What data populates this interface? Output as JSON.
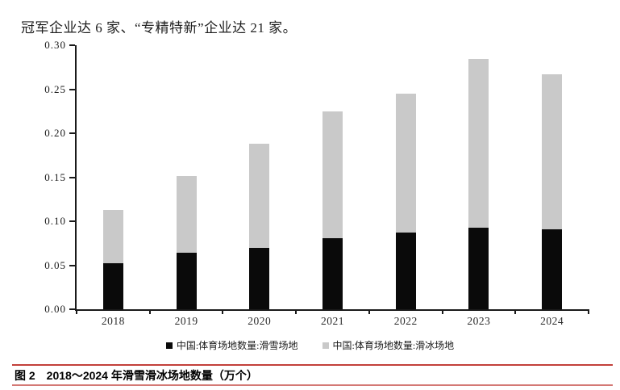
{
  "page": {
    "top_text": "冠军企业达 6 家、“专精特新”企业达 21 家。",
    "caption": "图 2　2018～2024 年滑雪滑冰场地数量（万个）"
  },
  "colors": {
    "ski_bar": "#0a0a0a",
    "skate_bar": "#c9c9c9",
    "axis": "#1a1a1a",
    "caption_rule": "#c2403a"
  },
  "chart_data": {
    "type": "bar",
    "stacked": true,
    "title": "",
    "xlabel": "",
    "ylabel": "",
    "categories": [
      "2018",
      "2019",
      "2020",
      "2021",
      "2022",
      "2023",
      "2024"
    ],
    "series": [
      {
        "name": "中国:体育场地数量:滑雪场地",
        "color_key": "ski_bar",
        "values": [
          0.052,
          0.064,
          0.07,
          0.081,
          0.087,
          0.093,
          0.091
        ]
      },
      {
        "name": "中国:体育场地数量:滑冰场地",
        "color_key": "skate_bar",
        "values": [
          0.061,
          0.087,
          0.118,
          0.144,
          0.158,
          0.191,
          0.176
        ]
      }
    ],
    "stack_totals": [
      0.113,
      0.151,
      0.188,
      0.225,
      0.245,
      0.284,
      0.267
    ],
    "ylim": [
      0,
      0.3
    ],
    "ytick_step": 0.05,
    "ytick_labels": [
      "0.00",
      "0.05",
      "0.10",
      "0.15",
      "0.20",
      "0.25",
      "0.30"
    ],
    "legend_position": "bottom",
    "grid": false
  }
}
